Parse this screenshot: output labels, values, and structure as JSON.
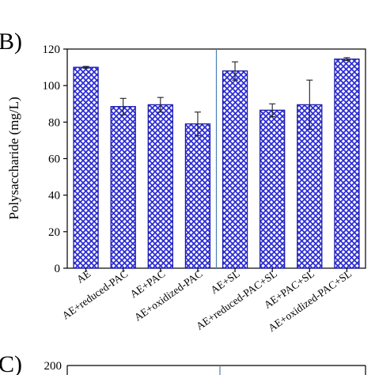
{
  "panel_labels": {
    "current": "B)",
    "next": "C)"
  },
  "next_panel_tick": "200",
  "colors": {
    "bar_fill": "#2b2bd6",
    "bar_stroke": "#1a1aa8",
    "divider": "#4a7fb5",
    "axis": "#000000"
  },
  "chart_data": {
    "type": "bar",
    "ylabel": "Polysaccharide (mg/L)",
    "xlabel": "",
    "ylim": [
      0,
      120
    ],
    "yticks": [
      0,
      20,
      40,
      60,
      80,
      100,
      120
    ],
    "grid": false,
    "pattern": "crosshatch",
    "divider_after_index": 3,
    "categories": [
      "AE",
      "AE+reduced-PAC",
      "AE+PAC",
      "AE+oxidized-PAC",
      "AE+SL",
      "AE+reduced-PAC+SL",
      "AE+PAC+SL",
      "AE+oxidized-PAC+SL"
    ],
    "values": [
      110,
      88.5,
      89.5,
      79,
      108,
      86.5,
      89.5,
      114.5
    ],
    "errors": [
      0.5,
      4.5,
      4,
      6.5,
      5,
      3.5,
      13.5,
      0.8
    ]
  }
}
